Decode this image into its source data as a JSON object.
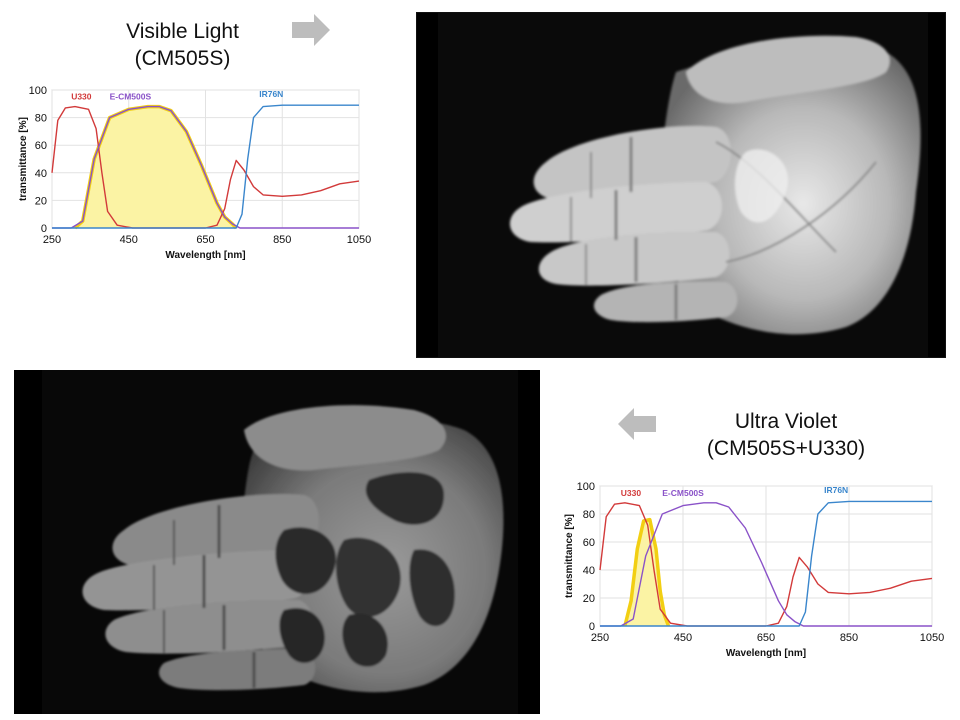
{
  "top_caption": {
    "line1": "Visible Light",
    "line2": "(CM505S)"
  },
  "bottom_caption": {
    "line1": "Ultra Violet",
    "line2": "(CM505S+U330)"
  },
  "colors": {
    "U330": "#d23a3a",
    "E-CM500S": "#8a52c8",
    "IR76N": "#3a86cc",
    "highlight_fill": "#fbf3a4",
    "highlight_stroke": "#f2cf13",
    "arrow": "#bdbdbd"
  },
  "chart_data": [
    {
      "type": "line",
      "xlabel": "Wavelength [nm]",
      "ylabel": "transmittance [%]",
      "xlim": [
        250,
        1050
      ],
      "ylim": [
        0,
        100
      ],
      "xticks": [
        "250",
        "450",
        "650",
        "850",
        "1050"
      ],
      "yticks": [
        "0",
        "20",
        "40",
        "60",
        "80",
        "100"
      ],
      "series": [
        {
          "name": "U330",
          "x": [
            250,
            265,
            285,
            310,
            345,
            365,
            380,
            395,
            420,
            460,
            600,
            650,
            680,
            700,
            715,
            730,
            750,
            775,
            800,
            850,
            900,
            950,
            1000,
            1050
          ],
          "y": [
            40,
            78,
            87,
            88,
            86,
            72,
            40,
            12,
            2,
            0,
            0,
            0,
            2,
            14,
            35,
            49,
            42,
            30,
            24,
            23,
            24,
            27,
            32,
            34
          ]
        },
        {
          "name": "E-CM500S",
          "x": [
            250,
            300,
            330,
            360,
            400,
            450,
            500,
            530,
            560,
            600,
            640,
            680,
            700,
            720,
            740,
            1050
          ],
          "y": [
            0,
            0,
            5,
            50,
            80,
            86,
            88,
            88,
            85,
            70,
            45,
            18,
            8,
            3,
            0,
            0
          ]
        },
        {
          "name": "IR76N",
          "x": [
            250,
            730,
            745,
            760,
            775,
            800,
            850,
            900,
            1050
          ],
          "y": [
            0,
            0,
            10,
            50,
            80,
            88,
            89,
            89,
            89
          ]
        }
      ],
      "highlight_band": {
        "x": [
          310,
          330,
          360,
          400,
          450,
          500,
          530,
          560,
          600,
          640,
          680,
          700,
          720,
          730
        ],
        "y": [
          0,
          5,
          50,
          80,
          86,
          88,
          88,
          85,
          70,
          45,
          18,
          8,
          3,
          0
        ]
      }
    },
    {
      "type": "line",
      "xlabel": "Wavelength [nm]",
      "ylabel": "transmittance [%]",
      "xlim": [
        250,
        1050
      ],
      "ylim": [
        0,
        100
      ],
      "xticks": [
        "250",
        "450",
        "650",
        "850",
        "1050"
      ],
      "yticks": [
        "0",
        "20",
        "40",
        "60",
        "80",
        "100"
      ],
      "series": [
        {
          "name": "U330",
          "x": [
            250,
            265,
            285,
            310,
            345,
            365,
            380,
            395,
            420,
            460,
            600,
            650,
            680,
            700,
            715,
            730,
            750,
            775,
            800,
            850,
            900,
            950,
            1000,
            1050
          ],
          "y": [
            40,
            78,
            87,
            88,
            86,
            72,
            40,
            12,
            2,
            0,
            0,
            0,
            2,
            14,
            35,
            49,
            42,
            30,
            24,
            23,
            24,
            27,
            32,
            34
          ]
        },
        {
          "name": "E-CM500S",
          "x": [
            250,
            300,
            330,
            360,
            400,
            450,
            500,
            530,
            560,
            600,
            640,
            680,
            700,
            720,
            740,
            1050
          ],
          "y": [
            0,
            0,
            5,
            50,
            80,
            86,
            88,
            88,
            85,
            70,
            45,
            18,
            8,
            3,
            0,
            0
          ]
        },
        {
          "name": "IR76N",
          "x": [
            250,
            730,
            745,
            760,
            775,
            800,
            850,
            900,
            1050
          ],
          "y": [
            0,
            0,
            10,
            50,
            80,
            88,
            89,
            89,
            89
          ]
        }
      ],
      "highlight_band": {
        "x": [
          310,
          325,
          340,
          355,
          370,
          385,
          395,
          405,
          415
        ],
        "y": [
          0,
          18,
          55,
          75,
          76,
          55,
          25,
          8,
          0
        ]
      }
    }
  ]
}
